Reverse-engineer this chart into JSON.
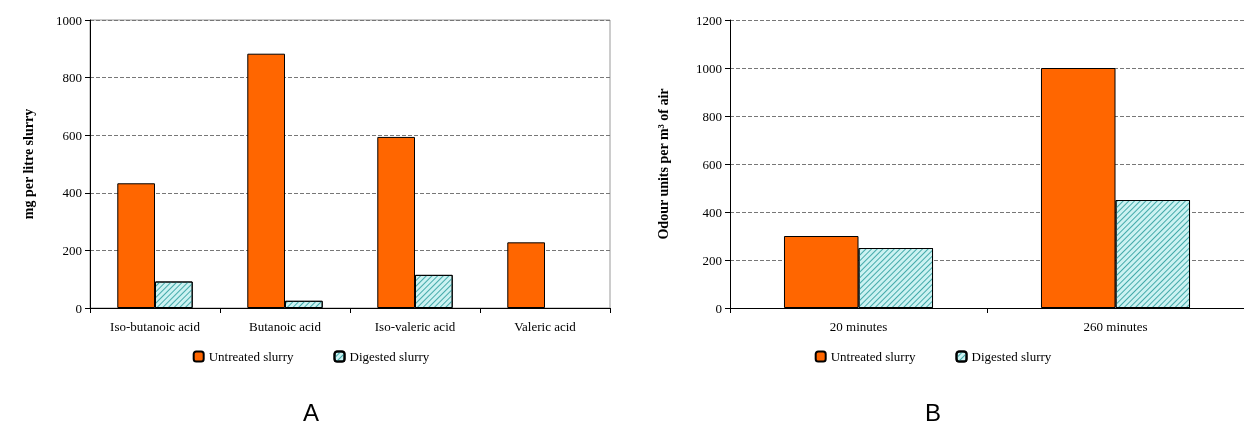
{
  "chart_data": [
    {
      "type": "bar",
      "ylabel": "mg per litre slurry",
      "categories": [
        "Iso-butanoic acid",
        "Butanoic acid",
        "Iso-valeric acid",
        "Valeric acid"
      ],
      "series": [
        {
          "name": "Untreated slurry",
          "color": "#ff6600",
          "values": [
            433,
            883,
            594,
            228
          ]
        },
        {
          "name": "Digested slurry",
          "color": "#ccf2f2",
          "values": [
            92,
            25,
            115,
            null
          ]
        }
      ],
      "ylim": [
        0,
        1000
      ],
      "yticks": [
        0,
        200,
        400,
        600,
        800,
        1000
      ],
      "grid": "y",
      "legend": "bottom",
      "annotations": [
        "A"
      ]
    },
    {
      "type": "bar",
      "ylabel": "Odour units per m³ of air",
      "categories": [
        "20 minutes",
        "260 minutes"
      ],
      "series": [
        {
          "name": "Untreated slurry",
          "color": "#ff6600",
          "values": [
            300,
            1000
          ]
        },
        {
          "name": "Digested slurry",
          "color": "#ccf2f2",
          "values": [
            250,
            450
          ]
        }
      ],
      "ylim": [
        0,
        1200
      ],
      "yticks": [
        0,
        200,
        400,
        600,
        800,
        1000,
        1200
      ],
      "grid": "y",
      "legend": "bottom",
      "annotations": [
        "B"
      ]
    }
  ]
}
